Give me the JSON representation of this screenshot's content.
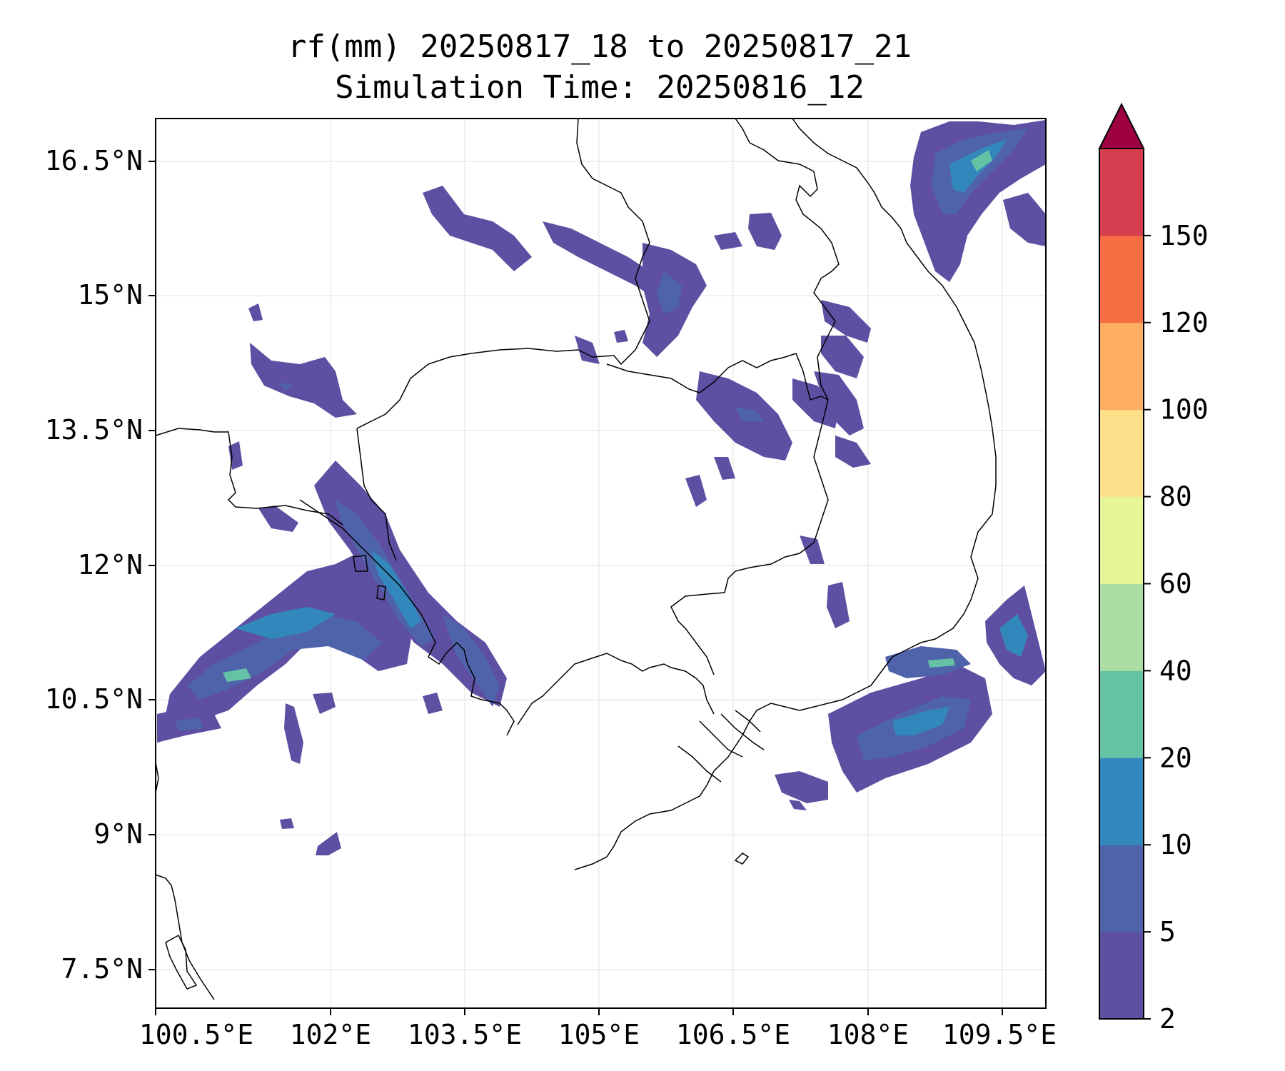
{
  "title": {
    "line1": "rf(mm) 20250817_18 to 20250817_21",
    "line2": "Simulation Time: 20250816_12"
  },
  "map": {
    "lat_ticks": [
      "16.5°N",
      "15°N",
      "13.5°N",
      "12°N",
      "10.5°N",
      "9°N",
      "7.5°N"
    ],
    "lon_ticks": [
      "100.5°E",
      "102°E",
      "103.5°E",
      "105°E",
      "106.5°E",
      "108°E",
      "109.5°E"
    ],
    "grid": true,
    "coastline_color": "#000000"
  },
  "colorbar": {
    "labels": [
      "2",
      "5",
      "10",
      "20",
      "40",
      "60",
      "80",
      "100",
      "120",
      "150"
    ],
    "colors": [
      "#5e4fa2",
      "#4f63ab",
      "#3288bd",
      "#66c2a5",
      "#abdda4",
      "#e6f598",
      "#fee08b",
      "#fdae61",
      "#f46d43",
      "#d53e4f"
    ],
    "extend_color": "#9e0142",
    "extend": "max"
  }
}
